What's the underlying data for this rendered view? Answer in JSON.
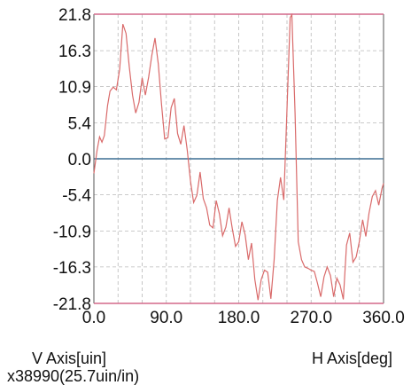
{
  "labels": {
    "v_axis": "V Axis[uin]",
    "h_axis": "H Axis[deg]",
    "scale": "x38990(25.7uin/in)"
  },
  "colors": {
    "trace": "#d96a6a",
    "zero_line": "#3d6f94",
    "border_line": "#d4688a",
    "grid": "#b9b9b9"
  },
  "chart_data": {
    "type": "line",
    "title": "",
    "xlabel": "H Axis[deg]",
    "ylabel": "V Axis[uin]",
    "xlim": [
      0,
      360
    ],
    "ylim": [
      -21.8,
      21.8
    ],
    "x_ticks": [
      "0.0",
      "90.0",
      "180.0",
      "270.0",
      "360.0"
    ],
    "x_tick_values": [
      0,
      90,
      180,
      270,
      360
    ],
    "y_ticks": [
      "21.8",
      "16.3",
      "10.9",
      "5.4",
      "0.0",
      "-5.4",
      "-10.9",
      "-16.3",
      "-21.8"
    ],
    "y_tick_values": [
      21.8,
      16.3,
      10.9,
      5.4,
      0.0,
      -5.4,
      -10.9,
      -16.3,
      -21.8
    ],
    "grid": true,
    "series": [
      {
        "x": [
          0,
          4,
          7,
          10,
          13,
          17,
          20,
          24,
          28,
          32,
          36,
          40,
          44,
          48,
          52,
          56,
          60,
          64,
          68,
          72,
          76,
          80,
          84,
          88,
          92,
          96,
          100,
          104,
          108,
          112,
          116,
          120,
          124,
          128,
          132,
          136,
          140,
          144,
          148,
          152,
          156,
          160,
          164,
          168,
          172,
          176,
          180,
          184,
          188,
          192,
          196,
          200,
          204,
          208,
          212,
          216,
          220,
          224,
          228,
          232,
          236,
          240,
          244,
          246,
          250,
          254,
          258,
          262,
          266,
          270,
          274,
          278,
          282,
          286,
          290,
          294,
          298,
          302,
          306,
          310,
          314,
          318,
          322,
          326,
          330,
          334,
          338,
          342,
          346,
          350,
          354,
          358,
          360
        ],
        "values": [
          -2.2,
          1.3,
          3.3,
          2.5,
          3.5,
          8.0,
          10.2,
          10.8,
          10.4,
          13.5,
          20.3,
          18.9,
          13.8,
          9.6,
          6.9,
          8.5,
          12.2,
          9.6,
          12.3,
          15.6,
          18.2,
          14.3,
          8.3,
          3.0,
          3.2,
          7.7,
          9.1,
          3.8,
          2.2,
          5.0,
          1.3,
          -3.3,
          -6.6,
          -5.5,
          -2.0,
          -6.0,
          -7.4,
          -10.0,
          -10.4,
          -6.3,
          -8.3,
          -11.6,
          -10.3,
          -7.4,
          -10.5,
          -13.2,
          -12.5,
          -9.5,
          -11.5,
          -15.2,
          -12.7,
          -18.2,
          -21.3,
          -18.2,
          -16.8,
          -17.1,
          -21.1,
          -15.2,
          -6.3,
          -2.8,
          -6.2,
          7.5,
          21.3,
          21.7,
          6.9,
          -12.5,
          -15.2,
          -16.3,
          -16.5,
          -16.8,
          -17.0,
          -18.8,
          -20.8,
          -17.8,
          -16.3,
          -17.6,
          -20.8,
          -18.0,
          -19.0,
          -21.2,
          -13.0,
          -11.2,
          -15.6,
          -14.8,
          -12.4,
          -9.2,
          -11.7,
          -8.2,
          -5.7,
          -4.8,
          -7.0,
          -4.5,
          -3.7
        ]
      }
    ]
  }
}
